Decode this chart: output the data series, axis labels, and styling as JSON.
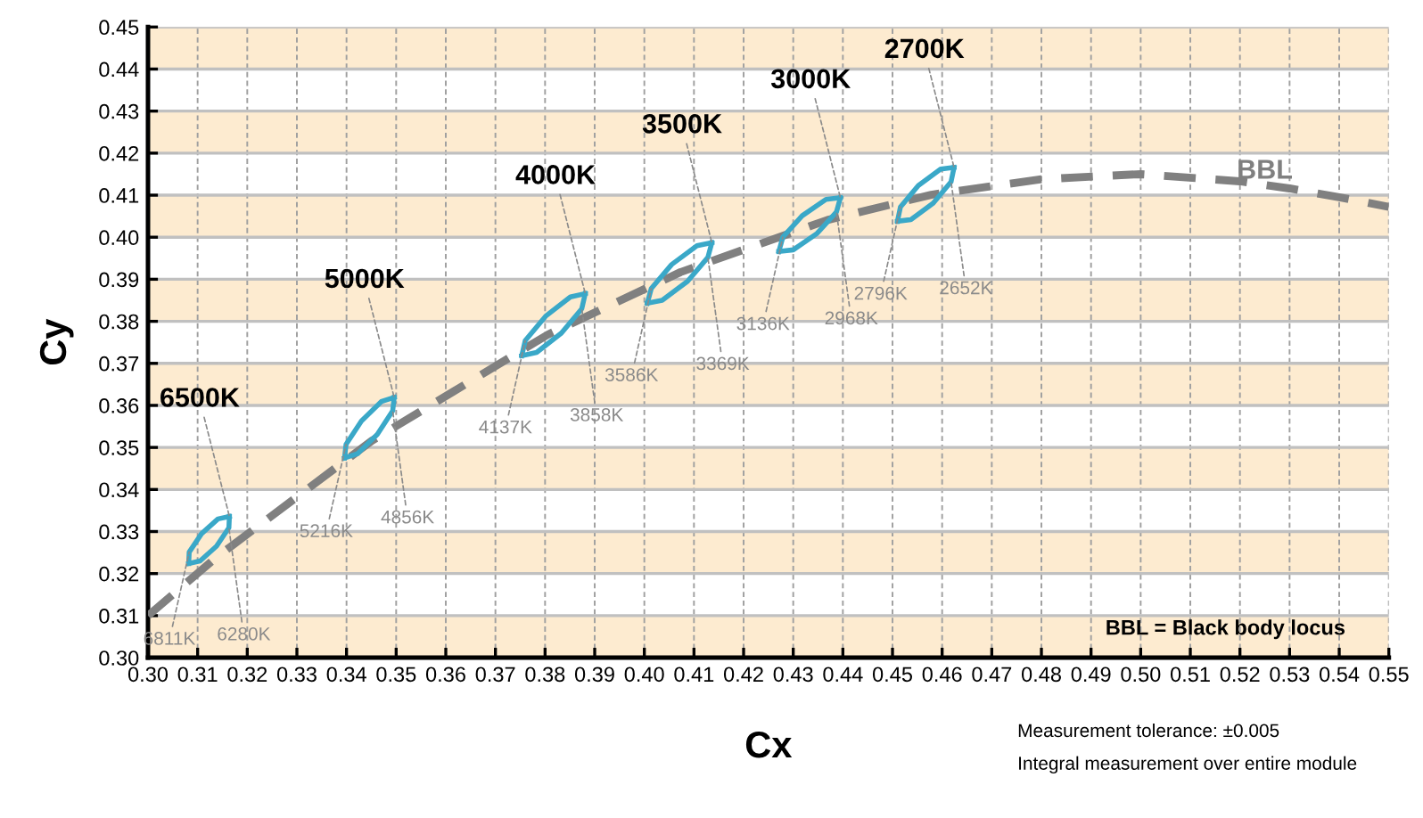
{
  "chart_data": {
    "type": "line",
    "xlabel": "Cx",
    "ylabel": "Cy",
    "xlim": [
      0.3,
      0.55
    ],
    "ylim": [
      0.3,
      0.45
    ],
    "xticks": [
      {
        "value": 0.3,
        "label": "0.30"
      },
      {
        "value": 0.31,
        "label": "0.31"
      },
      {
        "value": 0.32,
        "label": "0.32"
      },
      {
        "value": 0.33,
        "label": "0.33"
      },
      {
        "value": 0.34,
        "label": "0.34"
      },
      {
        "value": 0.35,
        "label": "0.35"
      },
      {
        "value": 0.36,
        "label": "0.36"
      },
      {
        "value": 0.37,
        "label": "0.37"
      },
      {
        "value": 0.38,
        "label": "0.38"
      },
      {
        "value": 0.39,
        "label": "0.39"
      },
      {
        "value": 0.4,
        "label": "0.40"
      },
      {
        "value": 0.41,
        "label": "0.41"
      },
      {
        "value": 0.42,
        "label": "0.42"
      },
      {
        "value": 0.43,
        "label": "0.43"
      },
      {
        "value": 0.44,
        "label": "0.44"
      },
      {
        "value": 0.45,
        "label": "0.45"
      },
      {
        "value": 0.46,
        "label": "0.46"
      },
      {
        "value": 0.47,
        "label": "0.47"
      },
      {
        "value": 0.48,
        "label": "0.48"
      },
      {
        "value": 0.49,
        "label": "0.49"
      },
      {
        "value": 0.5,
        "label": "0.50"
      },
      {
        "value": 0.51,
        "label": "0.51"
      },
      {
        "value": 0.52,
        "label": "0.52"
      },
      {
        "value": 0.53,
        "label": "0.53"
      },
      {
        "value": 0.54,
        "label": "0.54"
      },
      {
        "value": 0.55,
        "label": "0.55"
      }
    ],
    "yticks": [
      {
        "value": 0.3,
        "label": "0.30"
      },
      {
        "value": 0.31,
        "label": "0.31"
      },
      {
        "value": 0.32,
        "label": "0.32"
      },
      {
        "value": 0.33,
        "label": "0.33"
      },
      {
        "value": 0.34,
        "label": "0.34"
      },
      {
        "value": 0.35,
        "label": "0.35"
      },
      {
        "value": 0.36,
        "label": "0.36"
      },
      {
        "value": 0.37,
        "label": "0.37"
      },
      {
        "value": 0.38,
        "label": "0.38"
      },
      {
        "value": 0.39,
        "label": "0.39"
      },
      {
        "value": 0.4,
        "label": "0.40"
      },
      {
        "value": 0.41,
        "label": "0.41"
      },
      {
        "value": 0.42,
        "label": "0.42"
      },
      {
        "value": 0.43,
        "label": "0.43"
      },
      {
        "value": 0.44,
        "label": "0.44"
      },
      {
        "value": 0.45,
        "label": "0.45"
      }
    ],
    "grid": true,
    "bands": [
      {
        "axis": "y",
        "from": 0.3,
        "to": 0.31,
        "color": "#fdebd0"
      },
      {
        "axis": "y",
        "from": 0.32,
        "to": 0.33,
        "color": "#fdebd0"
      },
      {
        "axis": "y",
        "from": 0.34,
        "to": 0.35,
        "color": "#fdebd0"
      },
      {
        "axis": "y",
        "from": 0.36,
        "to": 0.37,
        "color": "#fdebd0"
      },
      {
        "axis": "y",
        "from": 0.38,
        "to": 0.39,
        "color": "#fdebd0"
      },
      {
        "axis": "y",
        "from": 0.4,
        "to": 0.41,
        "color": "#fdebd0"
      },
      {
        "axis": "y",
        "from": 0.42,
        "to": 0.43,
        "color": "#fdebd0"
      },
      {
        "axis": "y",
        "from": 0.44,
        "to": 0.45,
        "color": "#fdebd0"
      }
    ],
    "series": [
      {
        "name": "BBL",
        "color": "#808080",
        "line_style": "dashed",
        "x": [
          0.3,
          0.3135,
          0.3451,
          0.3805,
          0.4073,
          0.4369,
          0.4578,
          0.48,
          0.5,
          0.52,
          0.53,
          0.54,
          0.55
        ],
        "values": [
          0.31,
          0.3236,
          0.3516,
          0.3768,
          0.3917,
          0.4041,
          0.4101,
          0.4138,
          0.415,
          0.4133,
          0.4116,
          0.4095,
          0.4072
        ]
      },
      {
        "color": "#3aa8c8",
        "line_style": "solid",
        "x": [
          0.3082,
          0.3083,
          0.3108,
          0.3141,
          0.3164
        ],
        "values": [
          0.3224,
          0.3251,
          0.3295,
          0.333,
          0.3336
        ]
      },
      {
        "color": "#3aa8c8",
        "line_style": "solid",
        "x": [
          0.3082,
          0.3105,
          0.3138,
          0.3163,
          0.3164
        ],
        "values": [
          0.3224,
          0.323,
          0.3265,
          0.3309,
          0.3336
        ]
      },
      {
        "color": "#3aa8c8",
        "line_style": "solid",
        "x": [
          0.3396,
          0.3399,
          0.343,
          0.347,
          0.3496
        ],
        "values": [
          0.3475,
          0.3507,
          0.3563,
          0.3609,
          0.3619
        ]
      },
      {
        "color": "#3aa8c8",
        "line_style": "solid",
        "x": [
          0.3396,
          0.3422,
          0.3462,
          0.3493,
          0.3496
        ],
        "values": [
          0.3475,
          0.3485,
          0.3531,
          0.3587,
          0.3619
        ]
      },
      {
        "color": "#3aa8c8",
        "line_style": "solid",
        "x": [
          0.3753,
          0.376,
          0.3801,
          0.3851,
          0.3881
        ],
        "values": [
          0.3718,
          0.3754,
          0.3812,
          0.3858,
          0.3866
        ]
      },
      {
        "color": "#3aa8c8",
        "line_style": "solid",
        "x": [
          0.3753,
          0.3783,
          0.3833,
          0.3874,
          0.3881
        ],
        "values": [
          0.3718,
          0.3726,
          0.3772,
          0.383,
          0.3866
        ]
      },
      {
        "color": "#3aa8c8",
        "line_style": "solid",
        "x": [
          0.4006,
          0.4014,
          0.4055,
          0.4106,
          0.4136
        ],
        "values": [
          0.3843,
          0.3878,
          0.3935,
          0.398,
          0.3987
        ]
      },
      {
        "color": "#3aa8c8",
        "line_style": "solid",
        "x": [
          0.4006,
          0.4036,
          0.4087,
          0.4128,
          0.4136
        ],
        "values": [
          0.3843,
          0.385,
          0.3895,
          0.3952,
          0.3987
        ]
      },
      {
        "color": "#3aa8c8",
        "line_style": "solid",
        "x": [
          0.4271,
          0.4279,
          0.4318,
          0.4366,
          0.4395
        ],
        "values": [
          0.3966,
          0.4,
          0.4051,
          0.409,
          0.4094
        ]
      },
      {
        "color": "#3aa8c8",
        "line_style": "solid",
        "x": [
          0.4271,
          0.43,
          0.4348,
          0.4387,
          0.4395
        ],
        "values": [
          0.3966,
          0.397,
          0.4009,
          0.406,
          0.4094
        ]
      },
      {
        "color": "#3aa8c8",
        "line_style": "solid",
        "x": [
          0.451,
          0.4516,
          0.4552,
          0.4597,
          0.4624
        ],
        "values": [
          0.4038,
          0.4072,
          0.4123,
          0.4162,
          0.4166
        ]
      },
      {
        "color": "#3aa8c8",
        "line_style": "solid",
        "x": [
          0.451,
          0.4537,
          0.4582,
          0.4618,
          0.4624
        ],
        "values": [
          0.4038,
          0.4042,
          0.4081,
          0.4132,
          0.4166
        ]
      }
    ],
    "annotations": [
      {
        "text": "6500K",
        "x": 0.3164,
        "y": 0.3336
      },
      {
        "text": "5000K",
        "x": 0.3496,
        "y": 0.3619
      },
      {
        "text": "4000K",
        "x": 0.3881,
        "y": 0.3866
      },
      {
        "text": "3500K",
        "x": 0.4136,
        "y": 0.3987
      },
      {
        "text": "3000K",
        "x": 0.4395,
        "y": 0.4094
      },
      {
        "text": "2700K",
        "x": 0.4624,
        "y": 0.4166
      },
      {
        "text": "6811K",
        "x": 0.3083,
        "y": 0.3251
      },
      {
        "text": "6280K",
        "x": 0.3163,
        "y": 0.3309
      },
      {
        "text": "5216K",
        "x": 0.3399,
        "y": 0.3507
      },
      {
        "text": "4856K",
        "x": 0.3493,
        "y": 0.3587
      },
      {
        "text": "4137K",
        "x": 0.376,
        "y": 0.3754
      },
      {
        "text": "3858K",
        "x": 0.3874,
        "y": 0.383
      },
      {
        "text": "3586K",
        "x": 0.4014,
        "y": 0.3878
      },
      {
        "text": "3369K",
        "x": 0.4128,
        "y": 0.3952
      },
      {
        "text": "3136K",
        "x": 0.4279,
        "y": 0.4
      },
      {
        "text": "2968K",
        "x": 0.4387,
        "y": 0.406
      },
      {
        "text": "2796K",
        "x": 0.4516,
        "y": 0.4072
      },
      {
        "text": "2652K",
        "x": 0.4618,
        "y": 0.4132
      },
      "BBL = Black body locus",
      "Measurement tolerance: ±0.005",
      "Integral measurement over entire module"
    ]
  }
}
